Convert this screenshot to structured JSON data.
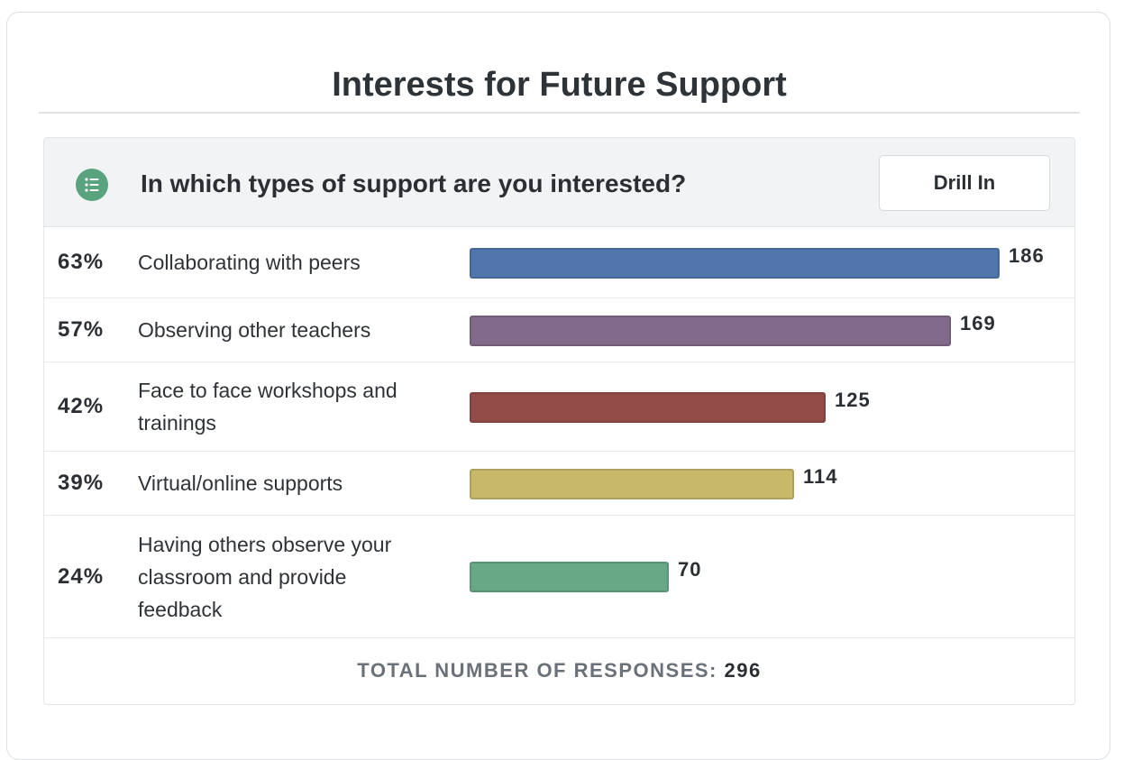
{
  "card": {
    "title": "Interests for Future Support"
  },
  "question": {
    "text": "In which types of support are you interested?",
    "icon": "list-icon",
    "drill_label": "Drill In"
  },
  "colors": {
    "icon_bg": "#5aa37f",
    "header_bg": "#f1f3f5"
  },
  "chart_data": {
    "type": "bar",
    "orientation": "horizontal",
    "xlim": [
      0,
      186
    ],
    "grid": false,
    "categories": [
      "Collaborating with peers",
      "Observing other teachers",
      "Face to face workshops and trainings",
      "Virtual/online supports",
      "Having others observe your classroom and provide feedback"
    ],
    "values": [
      186,
      169,
      125,
      114,
      70
    ],
    "percent_labels": [
      "63%",
      "57%",
      "42%",
      "39%",
      "24%"
    ],
    "count_labels": [
      "186",
      "169",
      "125",
      "114",
      "70"
    ],
    "colors": [
      "#5176ae",
      "#826a8a",
      "#934b47",
      "#c7b86a",
      "#68a887"
    ]
  },
  "footer": {
    "total_label": "TOTAL NUMBER OF RESPONSES:",
    "total_value": "296"
  }
}
